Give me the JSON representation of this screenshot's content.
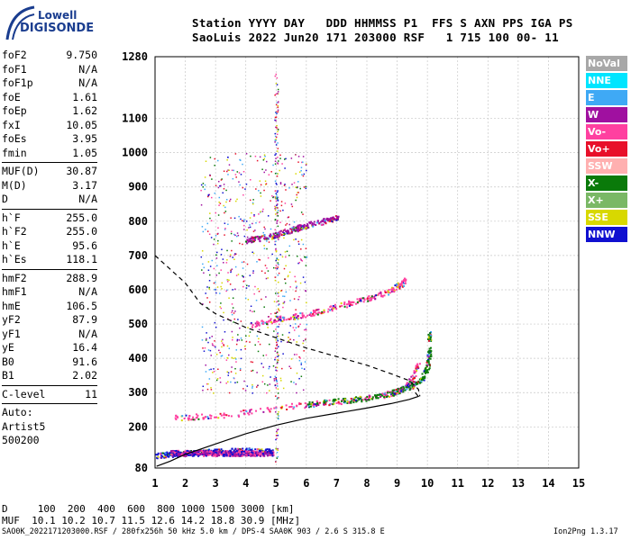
{
  "logo": {
    "line1": "Lowell",
    "line2": "DIGISONDE"
  },
  "header": {
    "line1": "Station YYYY DAY   DDD HHMMSS P1  FFS S AXN PPS IGA PS",
    "line2": "SaoLuis 2022 Jun20 171 203000 RSF   1 715 100 00- 11"
  },
  "params": [
    {
      "label": "foF2",
      "value": "9.750"
    },
    {
      "label": "foF1",
      "value": "N/A"
    },
    {
      "label": "foF1p",
      "value": "N/A"
    },
    {
      "label": "foE",
      "value": "1.61"
    },
    {
      "label": "foEp",
      "value": "1.62"
    },
    {
      "label": "fxI",
      "value": "10.05"
    },
    {
      "label": "foEs",
      "value": "3.95"
    },
    {
      "label": "fmin",
      "value": "1.05"
    },
    {
      "sep": true
    },
    {
      "label": "MUF(D)",
      "value": "30.87"
    },
    {
      "label": "M(D)",
      "value": "3.17"
    },
    {
      "label": "D",
      "value": "N/A"
    },
    {
      "sep": true
    },
    {
      "label": "h`F",
      "value": "255.0"
    },
    {
      "label": "h`F2",
      "value": "255.0"
    },
    {
      "label": "h`E",
      "value": "95.6"
    },
    {
      "label": "h`Es",
      "value": "118.1"
    },
    {
      "sep": true
    },
    {
      "label": "hmF2",
      "value": "288.9"
    },
    {
      "label": "hmF1",
      "value": "N/A"
    },
    {
      "label": "hmE",
      "value": "106.5"
    },
    {
      "label": "yF2",
      "value": "87.9"
    },
    {
      "label": "yF1",
      "value": "N/A"
    },
    {
      "label": "yE",
      "value": "16.4"
    },
    {
      "label": "B0",
      "value": "91.6"
    },
    {
      "label": "B1",
      "value": "2.02"
    },
    {
      "sep": true
    },
    {
      "label": "C-level",
      "value": "11"
    },
    {
      "sep": true
    },
    {
      "label": "Auto:",
      "value": ""
    },
    {
      "label": "Artist5",
      "value": ""
    },
    {
      "label": "500200",
      "value": ""
    }
  ],
  "legend": [
    {
      "label": "NoVal",
      "color": "#a8a8a8"
    },
    {
      "label": "NNE",
      "color": "#00e5ff"
    },
    {
      "label": "E",
      "color": "#3fa9f5"
    },
    {
      "label": "W",
      "color": "#a010a0"
    },
    {
      "label": "Vo-",
      "color": "#ff40a0"
    },
    {
      "label": "Vo+",
      "color": "#e8102a"
    },
    {
      "label": "SSW",
      "color": "#ffb0b0"
    },
    {
      "label": "X-",
      "color": "#0a7a0a"
    },
    {
      "label": "X+",
      "color": "#7ab865"
    },
    {
      "label": "SSE",
      "color": "#d8d800"
    },
    {
      "label": "NNW",
      "color": "#1010d0"
    }
  ],
  "mufs": {
    "line1": "D     100  200  400  600  800 1000 1500 3000 [km]",
    "line2": "MUF  10.1 10.2 10.7 11.5 12.6 14.2 18.8 30.9 [MHz]"
  },
  "footer": {
    "left": "SAO0K_2022171203000.RSF / 280fx256h 50 kHz 5.0 km / DPS-4 SAA0K 903 / 2.6 S 315.8 E",
    "right": "Ion2Png 1.3.17"
  },
  "chart_data": {
    "type": "scatter",
    "title": "",
    "xlabel": "",
    "ylabel": "",
    "xlim": [
      1,
      15
    ],
    "ylim": [
      80,
      1280
    ],
    "x_ticks": [
      1,
      2,
      3,
      4,
      5,
      6,
      7,
      8,
      9,
      10,
      11,
      12,
      13,
      14,
      15
    ],
    "y_ticks": [
      80,
      200,
      300,
      400,
      500,
      600,
      700,
      800,
      900,
      1000,
      1100,
      1280
    ],
    "grid": true,
    "traces": [
      {
        "name": "O-trace F2 (Vo-)",
        "points": [
          [
            1.7,
            228
          ],
          [
            2.5,
            232
          ],
          [
            3.5,
            238
          ],
          [
            4.5,
            250
          ],
          [
            5.5,
            262
          ],
          [
            6.5,
            270
          ],
          [
            7.5,
            280
          ],
          [
            8.5,
            293
          ],
          [
            9.0,
            305
          ],
          [
            9.3,
            320
          ],
          [
            9.5,
            345
          ],
          [
            9.7,
            385
          ]
        ]
      },
      {
        "name": "X-trace F2 (X-)",
        "points": [
          [
            6.0,
            268
          ],
          [
            7.0,
            276
          ],
          [
            8.0,
            285
          ],
          [
            8.8,
            300
          ],
          [
            9.4,
            318
          ],
          [
            9.8,
            340
          ],
          [
            10.0,
            380
          ],
          [
            10.05,
            420
          ],
          [
            10.05,
            480
          ]
        ]
      },
      {
        "name": "F2 second hop",
        "points": [
          [
            4.2,
            500
          ],
          [
            5.0,
            515
          ],
          [
            6.0,
            530
          ],
          [
            7.0,
            552
          ],
          [
            8.0,
            575
          ],
          [
            8.8,
            600
          ],
          [
            9.3,
            630
          ]
        ]
      },
      {
        "name": "F2 third hop",
        "points": [
          [
            4.0,
            745
          ],
          [
            5.0,
            762
          ],
          [
            6.0,
            790
          ],
          [
            7.0,
            810
          ]
        ]
      },
      {
        "name": "Es trace",
        "points": [
          [
            1.0,
            118
          ],
          [
            2.0,
            125
          ],
          [
            3.0,
            130
          ],
          [
            4.0,
            132
          ],
          [
            4.9,
            130
          ]
        ]
      }
    ],
    "profile_solid": [
      [
        1.05,
        85
      ],
      [
        1.5,
        100
      ],
      [
        2.0,
        120
      ],
      [
        3.0,
        150
      ],
      [
        4.0,
        180
      ],
      [
        5.0,
        205
      ],
      [
        6.0,
        225
      ],
      [
        7.0,
        240
      ],
      [
        8.0,
        255
      ],
      [
        8.8,
        268
      ],
      [
        9.4,
        280
      ],
      [
        9.7,
        289
      ],
      [
        9.6,
        300
      ]
    ],
    "profile_dashed": [
      [
        1.0,
        700
      ],
      [
        1.5,
        660
      ],
      [
        2.0,
        620
      ],
      [
        2.5,
        560
      ],
      [
        3.0,
        530
      ],
      [
        3.5,
        510
      ],
      [
        4.0,
        490
      ],
      [
        5.0,
        460
      ],
      [
        6.0,
        430
      ],
      [
        7.0,
        405
      ],
      [
        8.0,
        380
      ],
      [
        8.8,
        355
      ],
      [
        9.4,
        335
      ],
      [
        9.7,
        310
      ],
      [
        9.75,
        289
      ]
    ]
  }
}
